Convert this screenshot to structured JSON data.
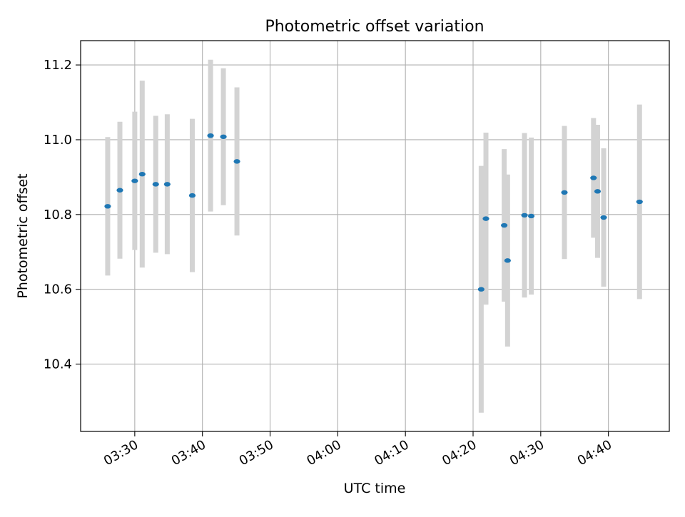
{
  "chart_data": {
    "type": "scatter",
    "title": "Photometric offset variation",
    "xlabel": "UTC time",
    "ylabel": "Photometric offset",
    "grid": true,
    "legend": "none",
    "xlim": [
      "03:22:00",
      "04:49:00"
    ],
    "ylim": [
      10.22,
      11.265
    ],
    "xticks": [
      "03:30",
      "03:40",
      "03:50",
      "04:00",
      "04:10",
      "04:20",
      "04:30",
      "04:40"
    ],
    "yticks": [
      10.4,
      10.6,
      10.8,
      11.0,
      11.2
    ],
    "series": [
      {
        "marker_color": "#1f77b4",
        "errorbar_color": "#d3d3d3",
        "points": [
          {
            "x": "03:26:00",
            "y": 10.822,
            "err": 0.185
          },
          {
            "x": "03:27:48",
            "y": 10.865,
            "err": 0.183
          },
          {
            "x": "03:30:00",
            "y": 10.89,
            "err": 0.185
          },
          {
            "x": "03:31:06",
            "y": 10.908,
            "err": 0.25
          },
          {
            "x": "03:33:06",
            "y": 10.881,
            "err": 0.183
          },
          {
            "x": "03:34:48",
            "y": 10.881,
            "err": 0.187
          },
          {
            "x": "03:38:30",
            "y": 10.851,
            "err": 0.205
          },
          {
            "x": "03:41:12",
            "y": 11.011,
            "err": 0.203
          },
          {
            "x": "03:43:06",
            "y": 11.008,
            "err": 0.183
          },
          {
            "x": "03:45:06",
            "y": 10.942,
            "err": 0.198
          },
          {
            "x": "04:21:12",
            "y": 10.6,
            "err": 0.33
          },
          {
            "x": "04:21:54",
            "y": 10.789,
            "err": 0.23
          },
          {
            "x": "04:24:36",
            "y": 10.771,
            "err": 0.204
          },
          {
            "x": "04:25:06",
            "y": 10.677,
            "err": 0.23
          },
          {
            "x": "04:27:36",
            "y": 10.798,
            "err": 0.22
          },
          {
            "x": "04:28:36",
            "y": 10.796,
            "err": 0.21
          },
          {
            "x": "04:33:30",
            "y": 10.859,
            "err": 0.178
          },
          {
            "x": "04:37:48",
            "y": 10.898,
            "err": 0.16
          },
          {
            "x": "04:38:24",
            "y": 10.862,
            "err": 0.178
          },
          {
            "x": "04:39:18",
            "y": 10.792,
            "err": 0.185
          },
          {
            "x": "04:44:36",
            "y": 10.834,
            "err": 0.26
          }
        ]
      }
    ]
  }
}
